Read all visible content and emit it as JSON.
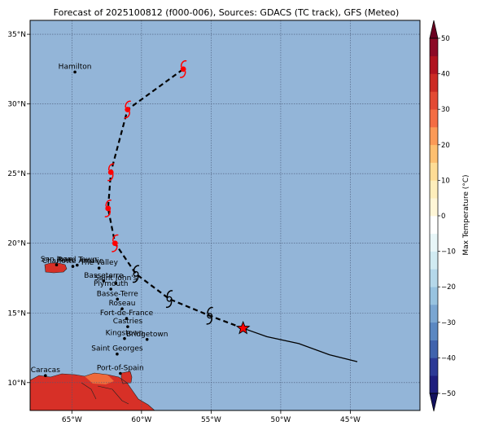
{
  "map": {
    "title": "Forecast of 2025100812 (f000-006), Sources: GDACS (TC track), GFS (Meteo)",
    "lon_range": [
      -68,
      -40
    ],
    "lat_range": [
      8,
      36
    ],
    "lon_ticks": [
      "65°W",
      "60°W",
      "55°W",
      "50°W",
      "45°W"
    ],
    "lat_ticks": [
      "35°N",
      "30°N",
      "25°N",
      "20°N",
      "15°N",
      "10°N"
    ],
    "colors": {
      "ocean": "#93b5d8",
      "land_hot": "#d73027",
      "land_warm": "#ef6a3b",
      "track": "#000000",
      "storm_symbol_active": "#ff0000",
      "storm_symbol_inactive": "#000000",
      "current_marker": "#ff0000"
    },
    "cities": [
      {
        "name": "Hamilton",
        "lon": -64.78,
        "lat": 32.29
      },
      {
        "name": "San Juan",
        "lon": -66.1,
        "lat": 18.45
      },
      {
        "name": "Road Town",
        "lon": -64.62,
        "lat": 18.43
      },
      {
        "name": "Charlotte Amalie",
        "lon": -64.93,
        "lat": 18.34
      },
      {
        "name": "The Valley",
        "lon": -63.05,
        "lat": 18.22
      },
      {
        "name": "Basseterre",
        "lon": -62.72,
        "lat": 17.3
      },
      {
        "name": "Saint John's",
        "lon": -61.85,
        "lat": 17.12
      },
      {
        "name": "Plymouth",
        "lon": -62.2,
        "lat": 16.71
      },
      {
        "name": "Basse-Terre",
        "lon": -61.73,
        "lat": 15.99
      },
      {
        "name": "Roseau",
        "lon": -61.39,
        "lat": 15.3
      },
      {
        "name": "Fort-de-France",
        "lon": -61.07,
        "lat": 14.6
      },
      {
        "name": "Castries",
        "lon": -60.99,
        "lat": 14.01
      },
      {
        "name": "Kingstown",
        "lon": -61.22,
        "lat": 13.16
      },
      {
        "name": "Bridgetown",
        "lon": -59.6,
        "lat": 13.1
      },
      {
        "name": "Saint Georges",
        "lon": -61.75,
        "lat": 12.05
      },
      {
        "name": "Port-of-Spain",
        "lon": -61.52,
        "lat": 10.66
      },
      {
        "name": "Caracas",
        "lon": -66.9,
        "lat": 10.5
      }
    ],
    "forecast_track": [
      {
        "lon": -52.7,
        "lat": 13.9,
        "symbol": "current"
      },
      {
        "lon": -55.1,
        "lat": 14.8,
        "symbol": "storm",
        "active": false
      },
      {
        "lon": -58.0,
        "lat": 16.0,
        "symbol": "storm",
        "active": false
      },
      {
        "lon": -60.4,
        "lat": 17.8,
        "symbol": "storm",
        "active": false
      },
      {
        "lon": -61.9,
        "lat": 20.0,
        "symbol": "storm",
        "active": true
      },
      {
        "lon": -62.4,
        "lat": 22.5,
        "symbol": "storm",
        "active": true
      },
      {
        "lon": -62.2,
        "lat": 25.1,
        "symbol": "storm",
        "active": true
      },
      {
        "lon": -61.0,
        "lat": 29.6,
        "symbol": "storm",
        "active": true
      },
      {
        "lon": -57.0,
        "lat": 32.5,
        "symbol": "storm",
        "active": true
      }
    ],
    "past_track": [
      {
        "lon": -44.5,
        "lat": 11.5
      },
      {
        "lon": -46.5,
        "lat": 12.0
      },
      {
        "lon": -48.7,
        "lat": 12.8
      },
      {
        "lon": -51.0,
        "lat": 13.3
      },
      {
        "lon": -52.7,
        "lat": 13.9
      }
    ]
  },
  "colorbar": {
    "label": "Max Temperature (°C)",
    "ticks": [
      "50",
      "40",
      "30",
      "20",
      "10",
      "0",
      "−10",
      "−20",
      "−30",
      "−40",
      "−50"
    ],
    "min": -50,
    "max": 50,
    "step": 5,
    "colors": [
      "#1e1e7e",
      "#2c3a96",
      "#4063ad",
      "#5b88c2",
      "#7aa6d2",
      "#98c3e0",
      "#b5d8ea",
      "#d1ebf2",
      "#e8f6f8",
      "#ffffff",
      "#fff6d7",
      "#feeebb",
      "#fedc95",
      "#fdbf70",
      "#fb9a57",
      "#f46d43",
      "#e34a33",
      "#cc2b24",
      "#b0131f",
      "#8c0a26"
    ],
    "over_color": "#6a0020",
    "under_color": "#13115e"
  }
}
